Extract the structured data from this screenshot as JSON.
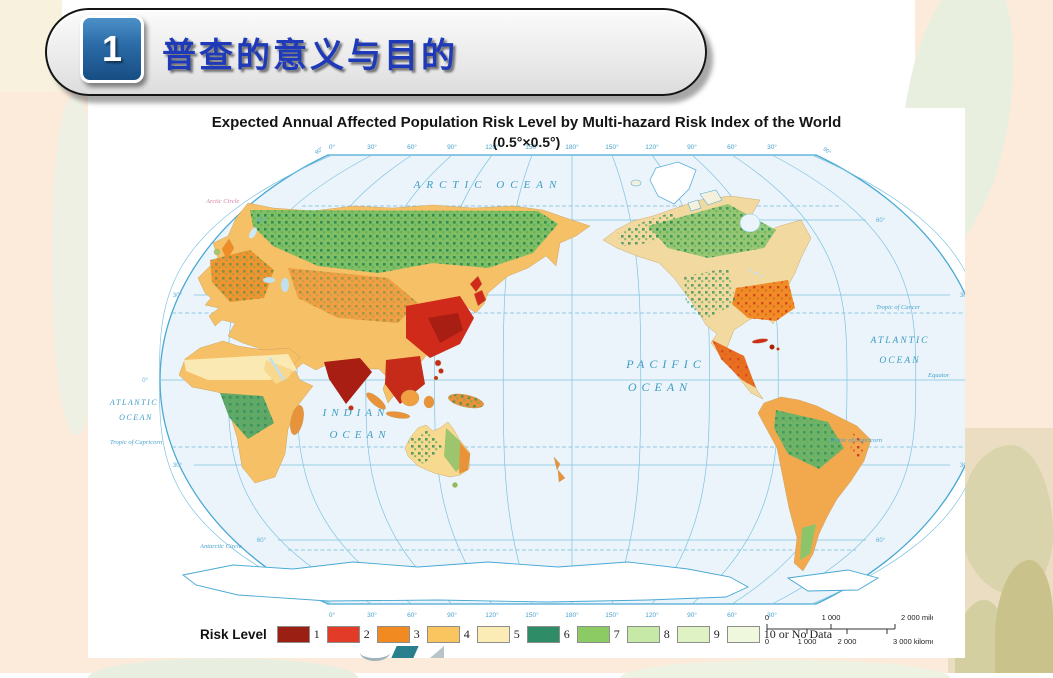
{
  "slide": {
    "header": {
      "number": "1",
      "title": "普查的意义与目的"
    },
    "colors": {
      "header_title_blue": "#1E3AB8",
      "header_box_blue": "#2A6AA6",
      "background_peach": "#FCEBDB",
      "background_green": "#E9EFDF",
      "background_khaki": "#D9D4AC"
    }
  },
  "map": {
    "title": "Expected Annual Affected Population Risk Level by Multi-hazard Risk Index of the World",
    "subtitle": "(0.5°×0.5°)",
    "ocean_labels": {
      "arctic": "ARCTIC OCEAN",
      "pacific_1": "PACIFIC",
      "pacific_2": "OCEAN",
      "indian_1": "INDIAN",
      "indian_2": "OCEAN",
      "atlantic_w_1": "ATLANTIC",
      "atlantic_w_2": "OCEAN",
      "atlantic_e_1": "ATLANTIC",
      "atlantic_e_2": "OCEAN"
    },
    "reference_lines": {
      "arctic_circle": "Arctic Circle",
      "tropic_cancer": "Tropic of Cancer",
      "equator": "Equator",
      "tropic_capricorn": "Tropic of Capricorn",
      "antarctic_circle": "Antarctic Circle"
    },
    "longitude_labels_top": [
      "0°",
      "30°",
      "60°",
      "90°",
      "120°",
      "150°",
      "180°",
      "150°",
      "120°",
      "90°",
      "60°",
      "30°"
    ],
    "longitude_labels_bottom": [
      "0°",
      "30°",
      "60°",
      "90°",
      "120°",
      "150°",
      "180°",
      "150°",
      "120°",
      "90°",
      "60°",
      "30°"
    ],
    "latitude_labels_left": [
      "60°",
      "30°",
      "0°",
      "30°",
      "60°"
    ],
    "latitude_labels_right": [
      "60°",
      "30°",
      "30°",
      "60°"
    ],
    "pole_label": "90°",
    "ocean_color": "#EAF4FA",
    "graticule_color": "#7FC3E0"
  },
  "legend": {
    "label": "Risk Level",
    "items": [
      {
        "value": "1",
        "color": "#9C1F14"
      },
      {
        "value": "2",
        "color": "#E23B28"
      },
      {
        "value": "3",
        "color": "#F08A21"
      },
      {
        "value": "4",
        "color": "#FAC55F"
      },
      {
        "value": "5",
        "color": "#FBEBB5"
      },
      {
        "value": "6",
        "color": "#2E8C67"
      },
      {
        "value": "7",
        "color": "#8CCB64"
      },
      {
        "value": "8",
        "color": "#C7E9A8"
      },
      {
        "value": "9",
        "color": "#DFF2C3"
      },
      {
        "value": "10 or No Data",
        "color": "#EFF7DC"
      }
    ]
  },
  "scalebar": {
    "miles": [
      "0",
      "1 000",
      "2 000 miles"
    ],
    "kilometers": [
      "0",
      "1 000",
      "2 000",
      "3 000 kilometers"
    ]
  }
}
